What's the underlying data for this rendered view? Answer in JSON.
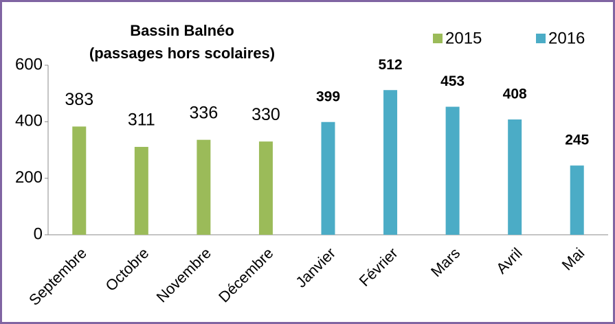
{
  "chart_data": {
    "type": "bar",
    "title": "Bassin Balnéo",
    "subtitle": "(passages hors scolaires)",
    "categories": [
      "Septembre",
      "Octobre",
      "Novembre",
      "Décembre",
      "Janvier",
      "Février",
      "Mars",
      "Avril",
      "Mai"
    ],
    "series": [
      {
        "name": "2015",
        "color": "#9bbb59",
        "values": [
          383,
          311,
          336,
          330,
          null,
          null,
          null,
          null,
          null
        ]
      },
      {
        "name": "2016",
        "color": "#4bacc6",
        "values": [
          null,
          null,
          null,
          null,
          399,
          512,
          453,
          408,
          245
        ]
      }
    ],
    "ylim": [
      0,
      600
    ],
    "yticks": [
      0,
      200,
      400,
      600
    ],
    "grid": false,
    "legend": "top-right"
  }
}
